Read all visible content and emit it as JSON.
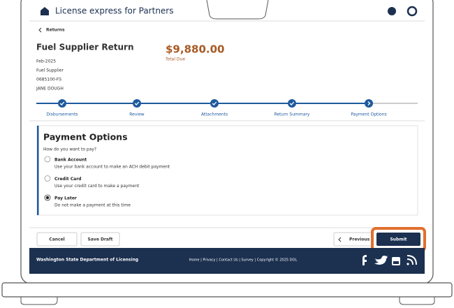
{
  "header": {
    "title": "License express for Partners"
  },
  "breadcrumb": "Returns",
  "return_info": {
    "title": "Fuel Supplier Return",
    "period": "Feb-2025",
    "type": "Fuel Supplier",
    "account": "0685100-FS",
    "name": "JANE DOUGH",
    "amount": "$9,880.00",
    "amount_label": "Total Due"
  },
  "steps": [
    "Disbursements",
    "Review",
    "Attachments",
    "Return Summary",
    "Payment Options"
  ],
  "payment": {
    "heading": "Payment Options",
    "question": "How do you want to pay?",
    "options": [
      {
        "label": "Bank Account",
        "description": "Use your bank account to make an ACH debit payment",
        "selected": false
      },
      {
        "label": "Credit Card",
        "description": "Use your credit card to make a payment",
        "selected": false
      },
      {
        "label": "Pay Later",
        "description": "Do not make a payment at this time",
        "selected": true
      }
    ]
  },
  "buttons": {
    "cancel": "Cancel",
    "save": "Save Draft",
    "previous": "Previous",
    "submit": "Submit"
  },
  "footer": {
    "org": "Washington State Department of Licensing",
    "links": "Home | Privacy | Contact Us | Survey | Copyright © 2025 DOL"
  }
}
